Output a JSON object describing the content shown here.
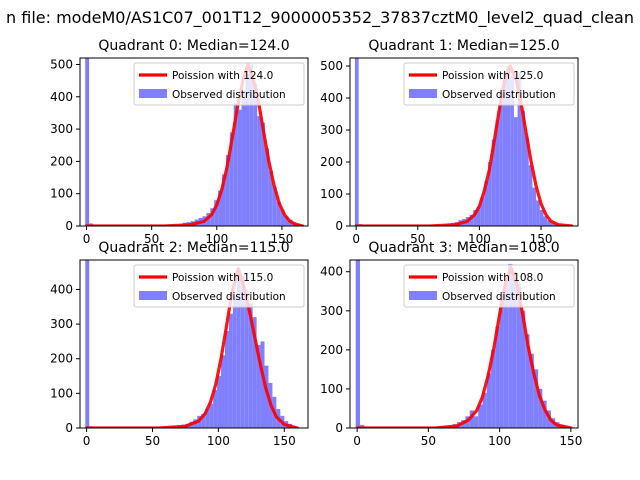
{
  "figure": {
    "suptitle": "n file: modeM0/AS1C07_001T12_9000005352_37837cztM0_level2_quad_clean"
  },
  "colors": {
    "fit_line": "#ff0000",
    "hist_fill": "#7f7fff",
    "axis": "#000000"
  },
  "legend_labels": {
    "observed": "Observed distribution"
  },
  "chart_data": [
    {
      "type": "bar",
      "title": "Quadrant 0: Median=124.0",
      "legend_fit": "Poission with 124.0",
      "median": 124.0,
      "xlim": [
        -5,
        170
      ],
      "ylim": [
        0,
        520
      ],
      "xticks": [
        0,
        50,
        100,
        150
      ],
      "yticks": [
        0,
        100,
        200,
        300,
        400,
        500
      ],
      "bin_width": 3,
      "hist": {
        "x": [
          -1,
          2,
          5,
          65,
          68,
          71,
          74,
          77,
          80,
          83,
          86,
          89,
          92,
          95,
          98,
          101,
          104,
          107,
          110,
          113,
          116,
          119,
          122,
          125,
          128,
          131,
          134,
          137,
          140,
          143,
          146,
          149,
          152,
          155,
          158,
          161
        ],
        "y": [
          520,
          8,
          4,
          2,
          4,
          6,
          10,
          12,
          15,
          20,
          25,
          30,
          40,
          55,
          80,
          110,
          160,
          220,
          290,
          380,
          360,
          420,
          470,
          500,
          440,
          340,
          320,
          240,
          170,
          120,
          75,
          50,
          30,
          20,
          12,
          6
        ]
      },
      "poisson": {
        "x": [
          0,
          60,
          80,
          90,
          96,
          100,
          104,
          108,
          112,
          116,
          120,
          124,
          128,
          132,
          136,
          140,
          144,
          148,
          152,
          156,
          160,
          166
        ],
        "y": [
          0,
          0,
          4,
          14,
          35,
          65,
          115,
          185,
          275,
          370,
          450,
          500,
          455,
          385,
          290,
          200,
          125,
          70,
          35,
          15,
          6,
          0
        ]
      }
    },
    {
      "type": "bar",
      "title": "Quadrant 1: Median=125.0",
      "legend_fit": "Poission with 125.0",
      "median": 125.0,
      "xlim": [
        -5,
        180
      ],
      "ylim": [
        0,
        525
      ],
      "xticks": [
        0,
        50,
        100,
        150
      ],
      "yticks": [
        0,
        100,
        200,
        300,
        400,
        500
      ],
      "bin_width": 3,
      "hist": {
        "x": [
          -1,
          2,
          5,
          68,
          71,
          74,
          77,
          80,
          83,
          86,
          89,
          92,
          95,
          98,
          101,
          104,
          107,
          110,
          113,
          116,
          119,
          122,
          125,
          128,
          131,
          134,
          137,
          140,
          143,
          146,
          149,
          152,
          155,
          158,
          161
        ],
        "y": [
          525,
          6,
          3,
          2,
          5,
          8,
          10,
          12,
          18,
          22,
          28,
          35,
          50,
          60,
          90,
          140,
          200,
          270,
          330,
          420,
          480,
          500,
          470,
          340,
          480,
          360,
          280,
          190,
          120,
          80,
          50,
          30,
          18,
          10,
          5
        ]
      },
      "poisson": {
        "x": [
          0,
          60,
          80,
          90,
          96,
          100,
          104,
          108,
          112,
          116,
          120,
          125,
          130,
          134,
          138,
          142,
          146,
          150,
          154,
          158,
          164,
          175
        ],
        "y": [
          0,
          0,
          4,
          14,
          35,
          62,
          110,
          175,
          265,
          360,
          445,
          500,
          455,
          380,
          290,
          200,
          125,
          70,
          35,
          15,
          4,
          0
        ]
      }
    },
    {
      "type": "bar",
      "title": "Quadrant 2: Median=115.0",
      "legend_fit": "Poission with 115.0",
      "median": 115.0,
      "xlim": [
        -5,
        168
      ],
      "ylim": [
        0,
        485
      ],
      "xticks": [
        0,
        50,
        100,
        150
      ],
      "yticks": [
        0,
        100,
        200,
        300,
        400
      ],
      "bin_width": 3,
      "hist": {
        "x": [
          -1,
          2,
          60,
          63,
          66,
          69,
          72,
          75,
          78,
          81,
          84,
          87,
          90,
          93,
          96,
          99,
          102,
          105,
          108,
          111,
          114,
          117,
          120,
          123,
          126,
          129,
          132,
          135,
          138,
          141,
          144,
          147,
          150,
          153,
          156
        ],
        "y": [
          485,
          5,
          2,
          3,
          5,
          8,
          10,
          12,
          18,
          25,
          35,
          40,
          55,
          70,
          110,
          150,
          210,
          280,
          330,
          380,
          460,
          440,
          400,
          360,
          320,
          240,
          250,
          180,
          130,
          90,
          55,
          35,
          20,
          12,
          5
        ]
      },
      "poisson": {
        "x": [
          0,
          55,
          75,
          85,
          90,
          94,
          98,
          102,
          106,
          110,
          115,
          120,
          124,
          128,
          132,
          136,
          140,
          144,
          150,
          160
        ],
        "y": [
          0,
          0,
          5,
          20,
          42,
          75,
          125,
          200,
          290,
          385,
          460,
          400,
          330,
          255,
          180,
          115,
          65,
          32,
          10,
          0
        ]
      }
    },
    {
      "type": "bar",
      "title": "Quadrant 3: Median=108.0",
      "legend_fit": "Poission with 108.0",
      "median": 108.0,
      "xlim": [
        -5,
        155
      ],
      "ylim": [
        0,
        430
      ],
      "xticks": [
        0,
        50,
        100,
        150
      ],
      "yticks": [
        0,
        100,
        200,
        300,
        400
      ],
      "bin_width": 3,
      "hist": {
        "x": [
          -1,
          2,
          5,
          58,
          61,
          64,
          67,
          70,
          73,
          76,
          79,
          82,
          85,
          88,
          91,
          94,
          97,
          100,
          103,
          106,
          109,
          112,
          115,
          118,
          121,
          124,
          127,
          130,
          133,
          136,
          139,
          142,
          145
        ],
        "y": [
          430,
          8,
          4,
          2,
          4,
          6,
          10,
          15,
          20,
          30,
          45,
          30,
          60,
          90,
          140,
          200,
          260,
          330,
          380,
          420,
          400,
          370,
          300,
          240,
          190,
          150,
          100,
          70,
          45,
          25,
          15,
          8,
          4
        ]
      },
      "poisson": {
        "x": [
          0,
          55,
          70,
          78,
          84,
          88,
          92,
          96,
          100,
          104,
          108,
          112,
          116,
          120,
          124,
          128,
          132,
          136,
          140,
          150
        ],
        "y": [
          0,
          0,
          5,
          20,
          45,
          80,
          135,
          205,
          290,
          370,
          410,
          370,
          295,
          210,
          140,
          82,
          45,
          20,
          8,
          0
        ]
      }
    }
  ]
}
